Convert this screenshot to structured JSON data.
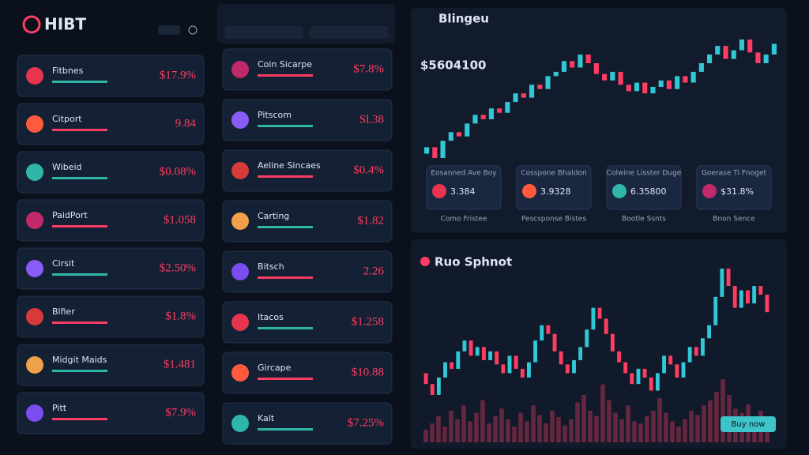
{
  "header": {
    "logo": "HIBT"
  },
  "left_list": [
    {
      "name": "Fitbnes",
      "value": "$17.9%"
    },
    {
      "name": "Citport",
      "value": "9.84"
    },
    {
      "name": "Wibeid",
      "value": "$0.08%"
    },
    {
      "name": "PaidPort",
      "value": "$1.058"
    },
    {
      "name": "Cirsit",
      "value": "$2.50%"
    },
    {
      "name": "Blfier",
      "value": "$1.8%"
    },
    {
      "name": "Midgit Maids",
      "value": "$1.481"
    },
    {
      "name": "Pitt",
      "value": "$7.9%"
    }
  ],
  "middle_list": [
    {
      "name": "Coin Sicarpe",
      "value": "$7.8%"
    },
    {
      "name": "Pitscom",
      "value": "Sl.38"
    },
    {
      "name": "Aeline Sincaes",
      "value": "$0.4%"
    },
    {
      "name": "Carting",
      "value": "$1.82"
    },
    {
      "name": "Bitsch",
      "value": "2.26"
    },
    {
      "name": "Itacos",
      "value": "$1.258"
    },
    {
      "name": "Gircape",
      "value": "$10.88"
    },
    {
      "name": "Kalt",
      "value": "$7.25%"
    }
  ],
  "top_panel": {
    "title": "Blingeu",
    "price": "$5604100",
    "prices": [
      42,
      45,
      40,
      48,
      52,
      50,
      56,
      60,
      58,
      63,
      61,
      66,
      70,
      68,
      74,
      72,
      78,
      80,
      85,
      82,
      88,
      84,
      79,
      76,
      80,
      74,
      71,
      75,
      70,
      73,
      76,
      72,
      78,
      75,
      80,
      84,
      88,
      92,
      86,
      90,
      95,
      89,
      84,
      88,
      93
    ],
    "stats": [
      {
        "label": "Eosanned Ave Boy",
        "value": "3.384",
        "caption": "Como Fristee"
      },
      {
        "label": "Cosspone Bhaldon",
        "value": "3.9328",
        "caption": "Pescsponse Bistes"
      },
      {
        "label": "Colwine Lisster Duge",
        "value": "6.35800",
        "caption": "Bootle Ssnts"
      },
      {
        "label": "Goerase Ti Fnoget",
        "value": "$31.8%",
        "caption": "Bnon Sence"
      }
    ]
  },
  "bottom_panel": {
    "title": "Ruo Sphnot",
    "button": "Buy now",
    "prices": [
      40,
      35,
      30,
      38,
      45,
      42,
      50,
      55,
      48,
      52,
      46,
      50,
      44,
      40,
      48,
      42,
      38,
      45,
      55,
      62,
      58,
      50,
      44,
      40,
      46,
      52,
      60,
      70,
      65,
      58,
      50,
      45,
      40,
      35,
      42,
      38,
      32,
      40,
      48,
      44,
      38,
      45,
      52,
      48,
      56,
      62,
      75,
      88,
      80,
      70,
      78,
      72,
      80,
      76,
      68
    ],
    "volumes": [
      12,
      18,
      25,
      15,
      30,
      22,
      35,
      20,
      28,
      40,
      18,
      25,
      32,
      22,
      15,
      28,
      20,
      35,
      26,
      18,
      30,
      24,
      16,
      22,
      38,
      45,
      30,
      25,
      55,
      40,
      28,
      22,
      35,
      20,
      18,
      25,
      30,
      42,
      28,
      20,
      15,
      22,
      30,
      26,
      35,
      40,
      48,
      60,
      45,
      32,
      28,
      36,
      24,
      30,
      20
    ]
  }
}
